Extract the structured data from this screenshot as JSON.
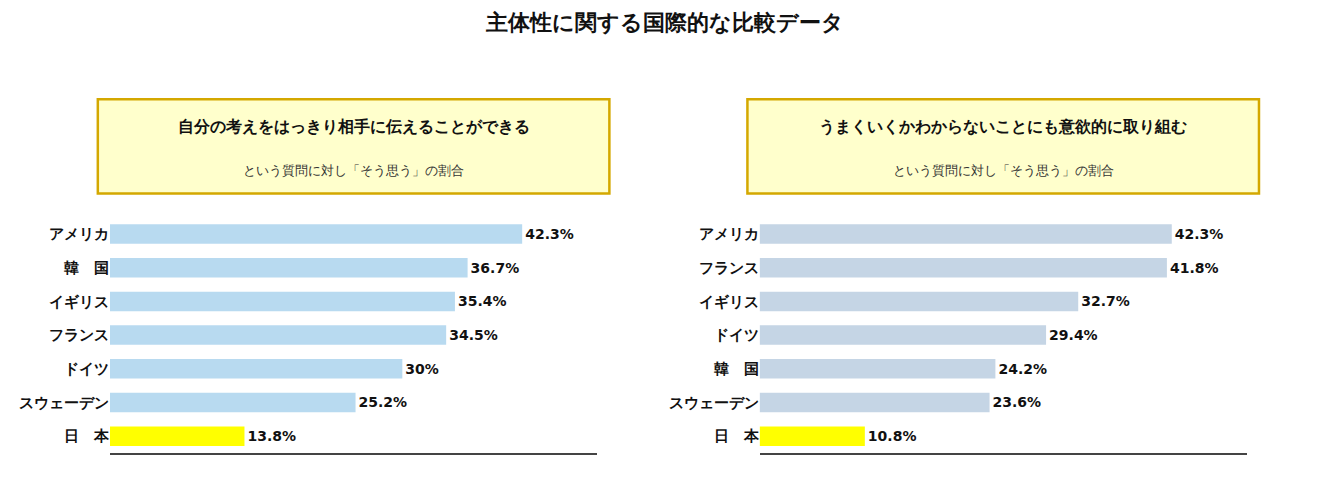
{
  "title": "主体性に関する国際的な比較データ",
  "chart_data": [
    {
      "type": "bar",
      "orientation": "horizontal",
      "title": "自分の考えをはっきり相手に伝えることができる",
      "subtitle": "という質問に対し「そう思う」の割合",
      "categories": [
        "アメリカ",
        "韓　国",
        "イギリス",
        "フランス",
        "ドイツ",
        "スウェーデン",
        "日　本"
      ],
      "values": [
        42.3,
        36.7,
        35.4,
        34.5,
        30.0,
        25.2,
        13.8
      ],
      "value_labels": [
        "42.3%",
        "36.7%",
        "35.4%",
        "34.5%",
        "30%",
        "25.2%",
        "13.8%"
      ],
      "colors": [
        "#b8daf0",
        "#b8daf0",
        "#b8daf0",
        "#b8daf0",
        "#b8daf0",
        "#b8daf0",
        "#ffff00"
      ],
      "xlim": [
        0,
        50
      ],
      "xticks": [],
      "tick_labels": "y",
      "grid": false,
      "data_labels": true
    },
    {
      "type": "bar",
      "orientation": "horizontal",
      "title": "うまくいくかわからないことにも意欲的に取り組む",
      "subtitle": "という質問に対し「そう思う」の割合",
      "categories": [
        "アメリカ",
        "フランス",
        "イギリス",
        "ドイツ",
        "韓　国",
        "スウェーデン",
        "日　本"
      ],
      "values": [
        42.3,
        41.8,
        32.7,
        29.4,
        24.2,
        23.6,
        10.8
      ],
      "value_labels": [
        "42.3%",
        "41.8%",
        "32.7%",
        "29.4%",
        "24.2%",
        "23.6%",
        "10.8%"
      ],
      "colors": [
        "#c5d5e5",
        "#c5d5e5",
        "#c5d5e5",
        "#c5d5e5",
        "#c5d5e5",
        "#c5d5e5",
        "#ffff00"
      ],
      "xlim": [
        0,
        50
      ],
      "xticks": [],
      "tick_labels": "y",
      "grid": false,
      "data_labels": true
    }
  ]
}
